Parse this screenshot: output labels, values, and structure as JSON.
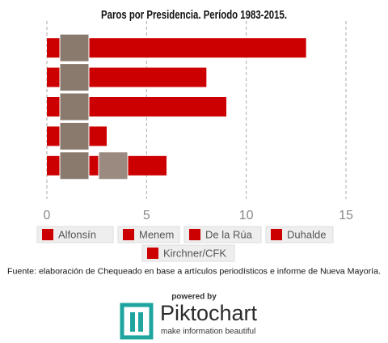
{
  "chart_data": {
    "type": "bar",
    "orientation": "horizontal",
    "title": "Paros por Presidencia. Período 1983-2015.",
    "categories": [
      "Alfonsín",
      "Menem",
      "De la Rúa",
      "Duhalde",
      "Kirchner/CFK"
    ],
    "values": [
      13,
      8,
      9,
      3,
      6
    ],
    "color": "#cc0000",
    "xlim": [
      0,
      15
    ],
    "xticks": [
      0,
      5,
      10,
      15
    ],
    "grid": true
  },
  "footer": {
    "source": "Fuente: elaboración de Chequeado en base a artículos periodísticos e informe de Nueva Mayoría.",
    "powered_by": "powered by",
    "brand": "Piktochart",
    "tagline": "make information beautiful"
  }
}
